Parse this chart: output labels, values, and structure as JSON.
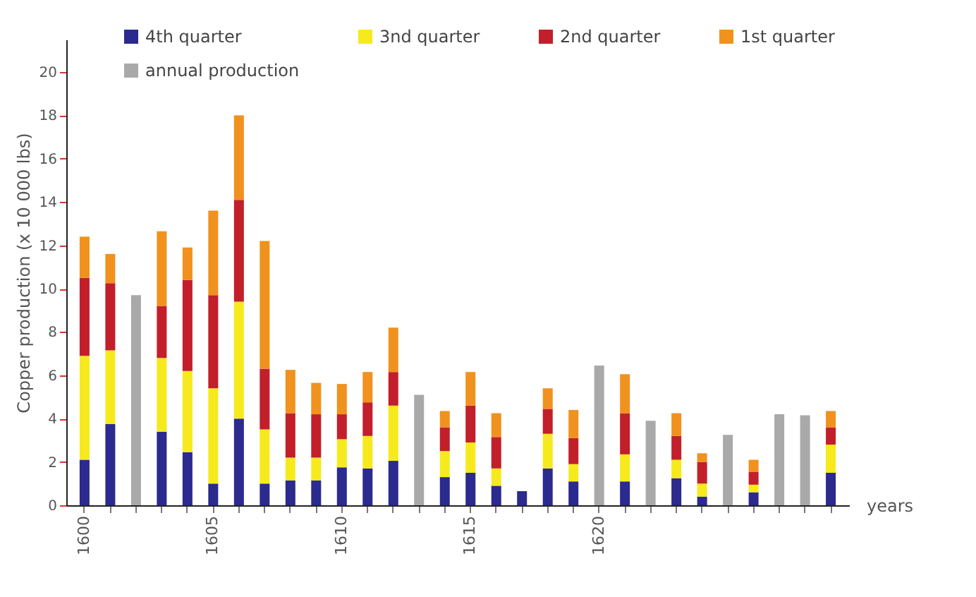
{
  "chart_data": {
    "type": "bar",
    "stacked": true,
    "categories": [
      "1600",
      null,
      null,
      null,
      null,
      "1605",
      null,
      null,
      null,
      null,
      "1610",
      null,
      null,
      null,
      null,
      "1615",
      null,
      null,
      null,
      null,
      "1620",
      null,
      null,
      null,
      null,
      null,
      null,
      null,
      null,
      null
    ],
    "xlabel": "years",
    "ylabel": "Copper production (x 10 000 lbs)",
    "ylim": [
      0,
      21.5
    ],
    "yticks": [
      0,
      2,
      4,
      6,
      8,
      10,
      12,
      14,
      16,
      18,
      20
    ],
    "legend": "top",
    "grid": false,
    "series": [
      {
        "name": "4th quarter",
        "color": "#2b2a8e",
        "values": [
          2.1,
          3.75,
          null,
          3.4,
          2.45,
          1.0,
          4.0,
          1.0,
          1.15,
          1.15,
          1.75,
          1.7,
          2.05,
          null,
          1.3,
          1.5,
          0.9,
          0.65,
          1.7,
          1.1,
          null,
          1.1,
          null,
          1.25,
          0.4,
          null,
          0.6,
          null,
          null,
          1.5
        ]
      },
      {
        "name": "3nd quarter",
        "color": "#f6ea1c",
        "values": [
          4.8,
          3.4,
          null,
          3.4,
          3.75,
          4.4,
          5.4,
          2.5,
          1.05,
          1.05,
          1.3,
          1.5,
          2.55,
          null,
          1.2,
          1.4,
          0.8,
          null,
          1.6,
          0.8,
          null,
          1.25,
          null,
          0.85,
          0.6,
          null,
          0.35,
          null,
          null,
          1.3
        ]
      },
      {
        "name": "2nd quarter",
        "color": "#c21f2b",
        "values": [
          3.6,
          3.1,
          null,
          2.4,
          4.2,
          4.3,
          4.7,
          2.8,
          2.05,
          2.0,
          1.15,
          1.55,
          1.55,
          null,
          1.1,
          1.7,
          1.45,
          null,
          1.15,
          1.2,
          null,
          1.9,
          null,
          1.1,
          1.0,
          null,
          0.6,
          null,
          null,
          0.8
        ]
      },
      {
        "name": "1st quarter",
        "color": "#f0921d",
        "values": [
          1.9,
          1.35,
          null,
          3.45,
          1.5,
          3.9,
          3.9,
          5.9,
          2.0,
          1.45,
          1.4,
          1.4,
          2.05,
          null,
          0.75,
          1.55,
          1.1,
          null,
          0.95,
          1.3,
          null,
          1.8,
          null,
          1.05,
          0.4,
          null,
          0.55,
          null,
          null,
          0.75
        ]
      },
      {
        "name": "annual production",
        "color": "#a9a9a9",
        "values": [
          null,
          null,
          9.7,
          null,
          null,
          null,
          null,
          null,
          null,
          null,
          null,
          null,
          null,
          5.1,
          null,
          null,
          null,
          null,
          null,
          null,
          6.45,
          null,
          3.9,
          null,
          null,
          3.25,
          null,
          4.2,
          4.15,
          null
        ]
      }
    ]
  }
}
